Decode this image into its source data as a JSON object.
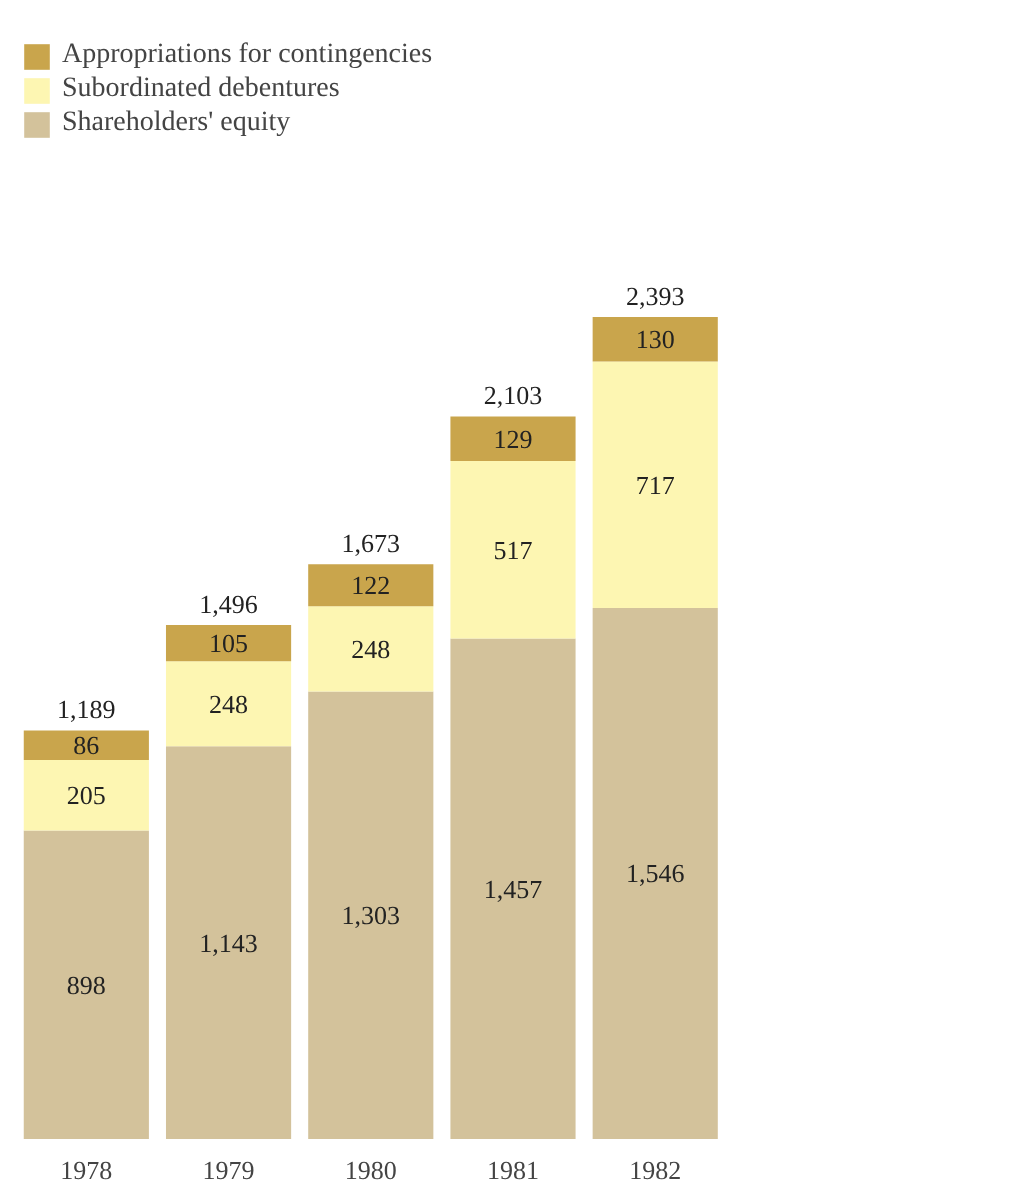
{
  "chart_data": {
    "type": "bar",
    "stacked": true,
    "categories": [
      "1978",
      "1979",
      "1980",
      "1981",
      "1982"
    ],
    "series": [
      {
        "name": "Shareholders' equity",
        "color": "#d3c29b",
        "values": [
          898,
          1143,
          1303,
          1457,
          1546
        ],
        "value_labels": [
          "898",
          "1,143",
          "1,303",
          "1,457",
          "1,546"
        ]
      },
      {
        "name": "Subordinated debentures",
        "color": "#fdf6b2",
        "values": [
          205,
          248,
          248,
          517,
          717
        ],
        "value_labels": [
          "205",
          "248",
          "248",
          "517",
          "717"
        ]
      },
      {
        "name": "Appropriations for contingencies",
        "color": "#c9a54c",
        "values": [
          86,
          105,
          122,
          129,
          130
        ],
        "value_labels": [
          "86",
          "105",
          "122",
          "129",
          "130"
        ]
      }
    ],
    "totals": [
      "1,189",
      "1,496",
      "1,673",
      "2,103",
      "2,393"
    ],
    "legend": "top left",
    "grid": false
  }
}
